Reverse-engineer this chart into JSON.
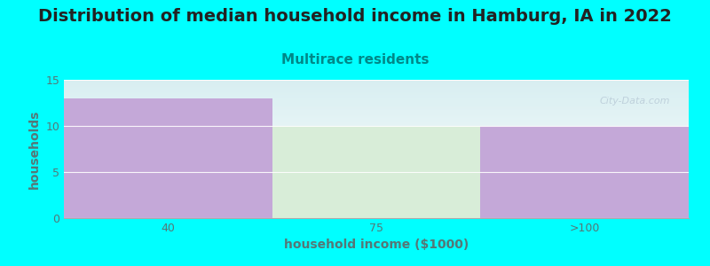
{
  "title": "Distribution of median household income in Hamburg, IA in 2022",
  "subtitle": "Multirace residents",
  "categories": [
    "40",
    "75",
    ">100"
  ],
  "values": [
    13,
    10,
    10
  ],
  "bar_colors": [
    "#C4A8D8",
    "#D8EDD8",
    "#C4A8D8"
  ],
  "xlabel": "household income ($1000)",
  "ylabel": "households",
  "ylim": [
    0,
    15
  ],
  "yticks": [
    0,
    5,
    10,
    15
  ],
  "background_color": "#00FFFF",
  "plot_bg_top": "#D6EEF0",
  "plot_bg_bottom": "#FFFFFF",
  "title_fontsize": 14,
  "subtitle_fontsize": 11,
  "subtitle_color": "#008888",
  "axis_label_fontsize": 10,
  "tick_label_fontsize": 9,
  "watermark": "City-Data.com",
  "tick_color": "#557777",
  "label_color": "#557777"
}
